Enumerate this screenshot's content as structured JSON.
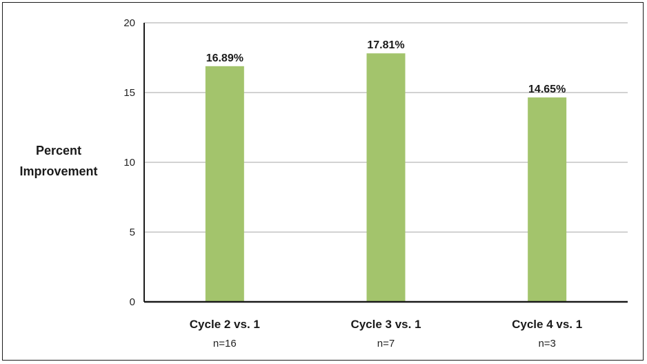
{
  "chart_data": {
    "type": "bar",
    "title": "",
    "xlabel": "",
    "ylabel_lines": [
      "Percent",
      "Improvement"
    ],
    "categories": [
      "Cycle 2 vs. 1",
      "Cycle 3 vs. 1",
      "Cycle 4 vs. 1"
    ],
    "sample_sizes": [
      "n=16",
      "n=7",
      "n=3"
    ],
    "values": [
      16.89,
      17.81,
      14.65
    ],
    "value_labels": [
      "16.89%",
      "17.81%",
      "14.65%"
    ],
    "ylim": [
      0,
      20
    ],
    "yticks": [
      0,
      5,
      10,
      15,
      20
    ],
    "grid": true,
    "legend": "none",
    "colors": {
      "bar": "#a3c46c",
      "grid": "#c4c4c4",
      "axis": "#1a1a1a"
    }
  }
}
